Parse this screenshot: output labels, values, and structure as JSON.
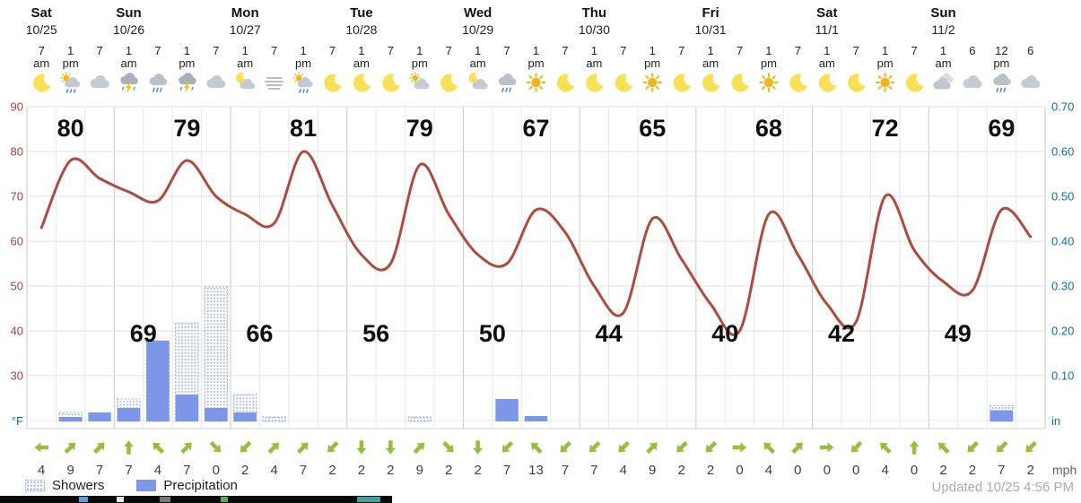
{
  "header": {
    "days": [
      {
        "name": "Sat",
        "date": "10/25",
        "cols": 3,
        "high": 80,
        "low": null
      },
      {
        "name": "Sun",
        "date": "10/26",
        "cols": 4,
        "high": 79,
        "low": 69
      },
      {
        "name": "Mon",
        "date": "10/27",
        "cols": 4,
        "high": 81,
        "low": 66
      },
      {
        "name": "Tue",
        "date": "10/28",
        "cols": 4,
        "high": 79,
        "low": 56
      },
      {
        "name": "Wed",
        "date": "10/29",
        "cols": 4,
        "high": 67,
        "low": 50
      },
      {
        "name": "Thu",
        "date": "10/30",
        "cols": 4,
        "high": 65,
        "low": 44
      },
      {
        "name": "Fri",
        "date": "10/31",
        "cols": 4,
        "high": 68,
        "low": 40
      },
      {
        "name": "Sat",
        "date": "11/1",
        "cols": 4,
        "high": 72,
        "low": 42
      },
      {
        "name": "Sun",
        "date": "11/2",
        "cols": 4,
        "high": 69,
        "low": 49
      }
    ]
  },
  "chart_data": {
    "type": "line+bar",
    "title": "10-day hourly temperature and precipitation forecast",
    "x_times": [
      "7 am",
      "1 pm",
      "7",
      "1 am",
      "7",
      "1 pm",
      "7",
      "1 am",
      "7",
      "1 pm",
      "7",
      "1 am",
      "7",
      "1 pm",
      "7",
      "1 am",
      "7",
      "1 pm",
      "7",
      "1 am",
      "7",
      "1 pm",
      "7",
      "1 am",
      "7",
      "1 pm",
      "7",
      "1 am",
      "7",
      "1 pm",
      "7",
      "1 am",
      "6",
      "12 pm",
      "6"
    ],
    "icons": [
      "moon",
      "showers-day",
      "cloud",
      "storm",
      "rain",
      "storm",
      "cloud",
      "night-cloud",
      "fog",
      "showers-day",
      "moon",
      "moon",
      "moon",
      "partly-day",
      "moon",
      "night-cloud",
      "rain",
      "sun",
      "moon",
      "moon",
      "moon",
      "sun",
      "moon",
      "moon",
      "moon",
      "sun",
      "moon",
      "moon",
      "moon",
      "sun",
      "moon",
      "clouds",
      "cloud",
      "rain",
      "cloud"
    ],
    "temps_f": [
      63,
      78,
      74,
      71,
      69,
      78,
      70,
      66,
      64,
      80,
      68,
      57,
      55,
      77,
      66,
      57,
      55,
      67,
      62,
      50,
      44,
      65,
      56,
      46,
      40,
      66,
      57,
      46,
      42,
      70,
      58,
      51,
      49,
      67,
      61
    ],
    "daily_highs": [
      80,
      79,
      81,
      79,
      67,
      65,
      68,
      72,
      69
    ],
    "daily_lows": [
      69,
      66,
      56,
      50,
      44,
      40,
      42,
      49
    ],
    "showers_in": [
      0,
      0.02,
      0,
      0.05,
      0.18,
      0.22,
      0.3,
      0.06,
      0.01,
      0,
      0,
      0,
      0,
      0.01,
      0,
      0,
      0,
      0,
      0,
      0,
      0,
      0,
      0,
      0,
      0,
      0,
      0,
      0,
      0,
      0,
      0,
      0,
      0,
      0.035,
      0
    ],
    "precip_in": [
      0,
      0.01,
      0.02,
      0.03,
      0.18,
      0.06,
      0.03,
      0.02,
      0,
      0,
      0,
      0,
      0,
      0,
      0,
      0,
      0.05,
      0.012,
      0,
      0,
      0,
      0,
      0,
      0,
      0,
      0,
      0,
      0,
      0,
      0,
      0,
      0,
      0,
      0.025,
      0
    ],
    "wind": {
      "speeds_mph": [
        4,
        9,
        7,
        7,
        4,
        7,
        0,
        2,
        4,
        7,
        2,
        2,
        2,
        9,
        2,
        2,
        7,
        13,
        7,
        7,
        4,
        9,
        2,
        2,
        0,
        4,
        0,
        0,
        0,
        4,
        0,
        2,
        2,
        7,
        2
      ],
      "dirs_deg": [
        270,
        45,
        45,
        0,
        315,
        45,
        135,
        225,
        45,
        45,
        225,
        180,
        180,
        45,
        135,
        180,
        225,
        315,
        225,
        225,
        225,
        45,
        225,
        225,
        90,
        315,
        45,
        90,
        225,
        315,
        0,
        315,
        225,
        225,
        225
      ],
      "unit": "mph"
    },
    "y_left": {
      "ticks": [
        90,
        80,
        70,
        60,
        50,
        40,
        30
      ],
      "unit": "°F",
      "range": [
        20,
        90
      ]
    },
    "y_right": {
      "ticks": [
        "0.70",
        "0.60",
        "0.50",
        "0.40",
        "0.30",
        "0.20",
        "0.10"
      ],
      "unit": "in",
      "range": [
        0,
        0.8
      ]
    },
    "grid": true,
    "legend_position": "bottom-left"
  },
  "legend": {
    "showers": "Showers",
    "precipitation": "Precipitation"
  },
  "footer": {
    "updated": "Updated 10/25 4:56 PM"
  },
  "colors": {
    "temp_line": "#b04a3c",
    "precip": "#7d96e8",
    "showers": "#9db2ea",
    "wind": "#92c23c",
    "axis_left": "#a0433a",
    "axis_right": "#0b6cbd"
  }
}
